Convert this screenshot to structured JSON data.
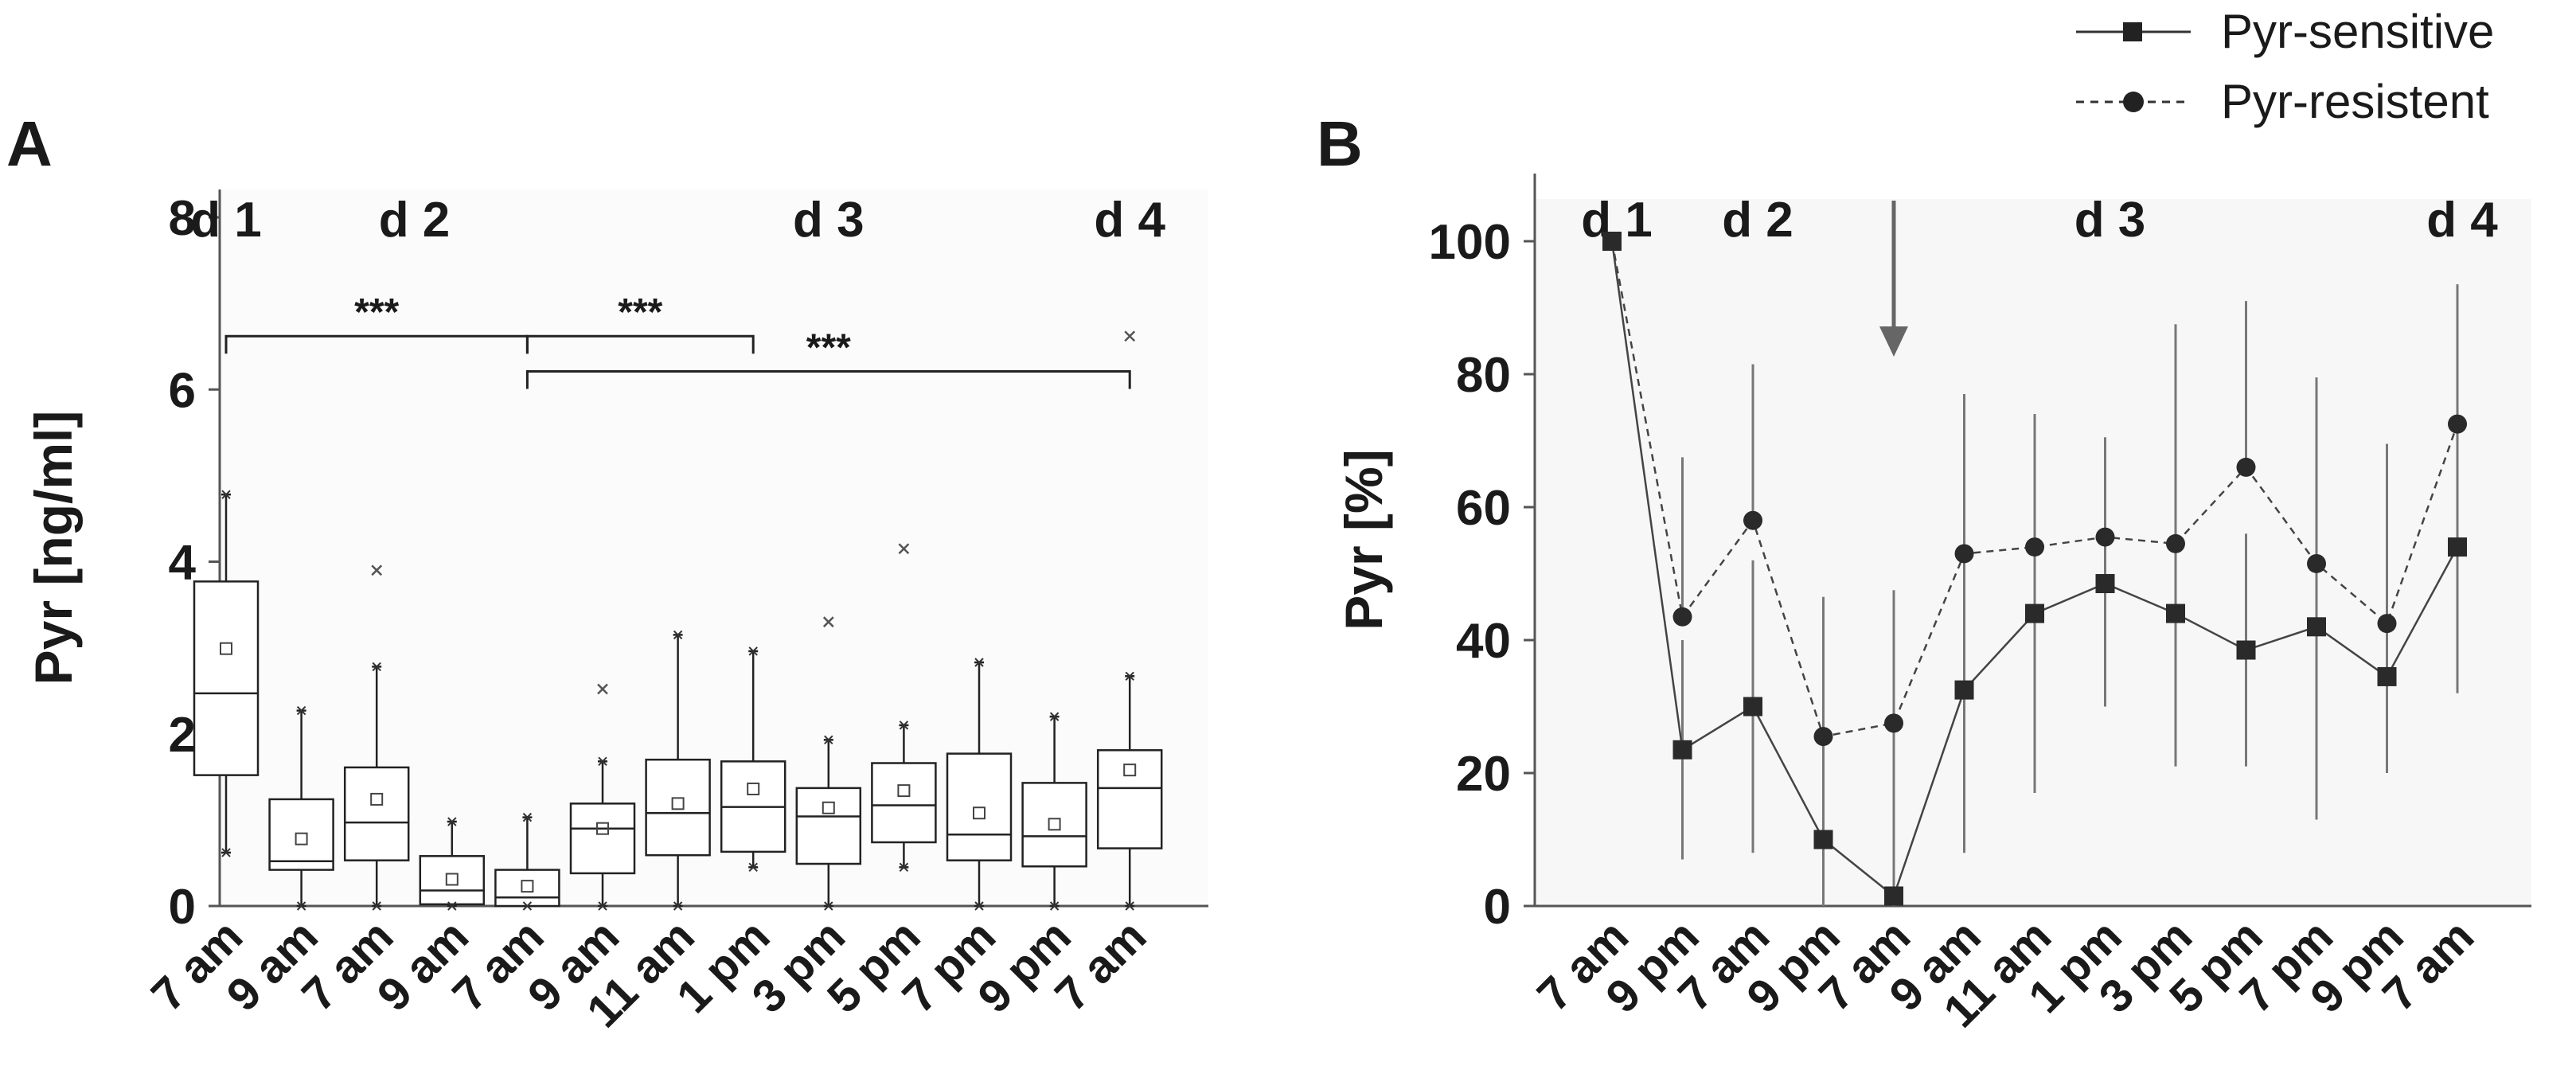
{
  "legend": {
    "position": "top-right",
    "entries": [
      {
        "label": "Pyr-sensitive",
        "marker": "square",
        "line": "solid"
      },
      {
        "label": "Pyr-resistent",
        "marker": "circle",
        "line": "dashed"
      }
    ]
  },
  "chart_data": [
    {
      "panel": "A",
      "type": "box",
      "xlabel": "",
      "ylabel": "Pyr [ng/ml]",
      "ylim": [
        0,
        8.5
      ],
      "yticks": [
        0,
        2,
        4,
        6,
        8
      ],
      "categories": [
        "7 am",
        "9 am",
        "7 am",
        "9 am",
        "7 am",
        "9 am",
        "11 am",
        "1 pm",
        "3 pm",
        "5 pm",
        "7 pm",
        "9 pm",
        "7 am"
      ],
      "day_labels": [
        {
          "label": "d 1",
          "at_index": 0
        },
        {
          "label": "d 2",
          "at_index": 2.5
        },
        {
          "label": "d 3",
          "at_index": 8
        },
        {
          "label": "d 4",
          "at_index": 12
        }
      ],
      "boxes": [
        {
          "q1": 1.52,
          "median": 2.47,
          "q3": 3.77,
          "wlow": 0.62,
          "whigh": 4.78,
          "mean": 2.99,
          "outliers": []
        },
        {
          "q1": 0.42,
          "median": 0.52,
          "q3": 1.24,
          "wlow": 0.0,
          "whigh": 2.27,
          "mean": 0.78,
          "outliers": []
        },
        {
          "q1": 0.53,
          "median": 0.97,
          "q3": 1.61,
          "wlow": 0.0,
          "whigh": 2.78,
          "mean": 1.24,
          "outliers": [
            3.9
          ]
        },
        {
          "q1": 0.02,
          "median": 0.18,
          "q3": 0.58,
          "wlow": 0.0,
          "whigh": 0.98,
          "mean": 0.31,
          "outliers": []
        },
        {
          "q1": 0.0,
          "median": 0.1,
          "q3": 0.42,
          "wlow": 0.0,
          "whigh": 1.03,
          "mean": 0.23,
          "outliers": []
        },
        {
          "q1": 0.38,
          "median": 0.9,
          "q3": 1.19,
          "wlow": 0.0,
          "whigh": 1.68,
          "mean": 0.9,
          "outliers": [
            2.52
          ]
        },
        {
          "q1": 0.59,
          "median": 1.08,
          "q3": 1.7,
          "wlow": 0.0,
          "whigh": 3.15,
          "mean": 1.19,
          "outliers": []
        },
        {
          "q1": 0.63,
          "median": 1.15,
          "q3": 1.68,
          "wlow": 0.45,
          "whigh": 2.96,
          "mean": 1.36,
          "outliers": []
        },
        {
          "q1": 0.49,
          "median": 1.04,
          "q3": 1.37,
          "wlow": 0.0,
          "whigh": 1.93,
          "mean": 1.14,
          "outliers": [
            3.3
          ]
        },
        {
          "q1": 0.74,
          "median": 1.17,
          "q3": 1.66,
          "wlow": 0.45,
          "whigh": 2.1,
          "mean": 1.34,
          "outliers": [
            4.15
          ]
        },
        {
          "q1": 0.53,
          "median": 0.83,
          "q3": 1.77,
          "wlow": 0.0,
          "whigh": 2.83,
          "mean": 1.08,
          "outliers": []
        },
        {
          "q1": 0.46,
          "median": 0.81,
          "q3": 1.43,
          "wlow": 0.0,
          "whigh": 2.2,
          "mean": 0.95,
          "outliers": []
        },
        {
          "q1": 0.67,
          "median": 1.37,
          "q3": 1.81,
          "wlow": 0.0,
          "whigh": 2.67,
          "mean": 1.58,
          "outliers": [
            6.62
          ]
        }
      ],
      "significance": [
        {
          "from_index": 0,
          "to_index": 4,
          "y": 6.62,
          "label": "***"
        },
        {
          "from_index": 4,
          "to_index": 7,
          "y": 6.62,
          "label": "***"
        },
        {
          "from_index": 4,
          "to_index": 12,
          "y": 6.21,
          "label": "***"
        }
      ]
    },
    {
      "panel": "B",
      "type": "line",
      "xlabel": "",
      "ylabel": "Pyr [%]",
      "ylim": [
        0,
        110
      ],
      "yticks": [
        0,
        20,
        40,
        60,
        80,
        100
      ],
      "categories": [
        "7 am",
        "9 pm",
        "7 am",
        "9 pm",
        "7 am",
        "9 am",
        "11 am",
        "1 pm",
        "3 pm",
        "5 pm",
        "7 pm",
        "9 pm",
        "7 am"
      ],
      "day_labels": [
        {
          "label": "d 1",
          "at_index": 0
        },
        {
          "label": "d 2",
          "at_index": 2
        },
        {
          "label": "d 3",
          "at_index": 7
        },
        {
          "label": "d 4",
          "at_index": 12
        }
      ],
      "arrow_at_index": 4,
      "series": [
        {
          "name": "Pyr-sensitive",
          "values": [
            100,
            23.5,
            30,
            10,
            1.5,
            32.5,
            44,
            48.5,
            44,
            38.5,
            42,
            34.5,
            54
          ],
          "err_low": [
            100,
            7,
            8,
            0,
            0,
            8,
            17,
            30,
            21,
            21,
            13,
            20,
            32
          ],
          "err_high": [
            100,
            40,
            52,
            26,
            47.5,
            77,
            74,
            70.5,
            87.5,
            56,
            79.5,
            69.5,
            93.5
          ]
        },
        {
          "name": "Pyr-resistent",
          "values": [
            100,
            43.5,
            58,
            25.5,
            27.5,
            53,
            54,
            55.5,
            54.5,
            66,
            51.5,
            42.5,
            72.5
          ],
          "err_low": [
            100,
            43.5,
            58,
            25.5,
            27.5,
            53,
            54,
            55.5,
            54.5,
            66,
            51.5,
            42.5,
            72.5
          ],
          "err_high": [
            100,
            67.5,
            81.5,
            46.5,
            47.5,
            77,
            74,
            70.5,
            87.5,
            91,
            79.5,
            69.5,
            93.5
          ]
        }
      ]
    }
  ]
}
